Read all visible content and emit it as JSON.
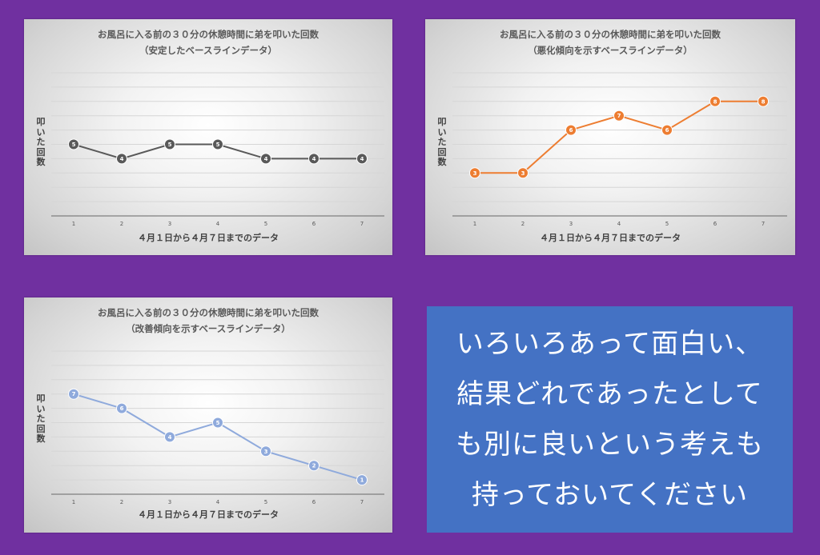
{
  "chart_data": [
    {
      "type": "line",
      "title": "お風呂に入る前の３０分の休憩時間に弟を叩いた回数",
      "subtitle": "（安定したベースラインデータ）",
      "xlabel": "４月１日から４月７日までのデータ",
      "ylabel": "叩いた回数",
      "x": [
        "1",
        "2",
        "3",
        "4",
        "5",
        "6",
        "7"
      ],
      "series": [
        {
          "values": [
            5,
            4,
            5,
            5,
            4,
            4,
            4
          ],
          "color": "#595959"
        }
      ],
      "ylim": [
        0,
        10
      ],
      "grid": true
    },
    {
      "type": "line",
      "title": "お風呂に入る前の３０分の休憩時間に弟を叩いた回数",
      "subtitle": "（悪化傾向を示すベースラインデータ）",
      "xlabel": "４月１日から４月７日までのデータ",
      "ylabel": "叩いた回数",
      "x": [
        "1",
        "2",
        "3",
        "4",
        "5",
        "6",
        "7"
      ],
      "series": [
        {
          "values": [
            3,
            3,
            6,
            7,
            6,
            8,
            8
          ],
          "color": "#ed7d31"
        }
      ],
      "ylim": [
        0,
        10
      ],
      "grid": true
    },
    {
      "type": "line",
      "title": "お風呂に入る前の３０分の休憩時間に弟を叩いた回数",
      "subtitle": "（改善傾向を示すベースラインデータ）",
      "xlabel": "４月１日から４月７日までのデータ",
      "ylabel": "叩いた回数",
      "x": [
        "1",
        "2",
        "3",
        "4",
        "5",
        "6",
        "7"
      ],
      "series": [
        {
          "values": [
            7,
            6,
            4,
            5,
            3,
            2,
            1
          ],
          "color": "#8faadc"
        }
      ],
      "ylim": [
        0,
        10
      ],
      "grid": true
    }
  ],
  "message": {
    "lines": [
      "いろいろあって面白い、",
      "結果どれであったとして",
      "も別に良いという考えも",
      "持っておいてください"
    ],
    "background": "#4472c4"
  }
}
